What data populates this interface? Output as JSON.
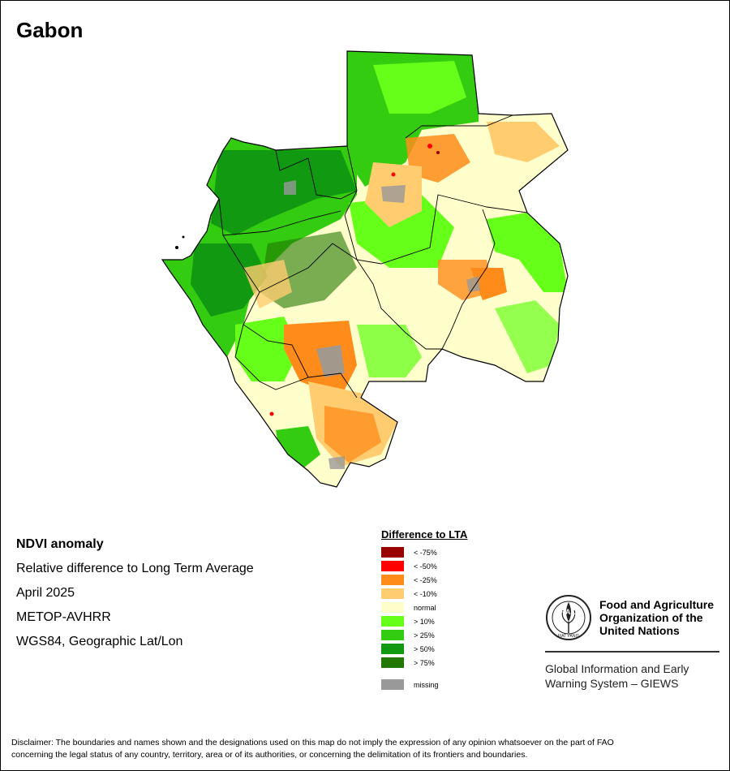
{
  "title": "Gabon",
  "info": {
    "line1": "NDVI anomaly",
    "line2": "Relative difference to Long Term Average",
    "line3": "April 2025",
    "line4": "METOP-AVHRR",
    "line5": "WGS84, Geographic Lat/Lon"
  },
  "legend": {
    "title": "Difference to LTA",
    "items": [
      {
        "label": "< -75%",
        "color": "#990000"
      },
      {
        "label": "< -50%",
        "color": "#ff0000"
      },
      {
        "label": "< -25%",
        "color": "#ff8c1a"
      },
      {
        "label": "< -10%",
        "color": "#ffcc70"
      },
      {
        "label": "normal",
        "color": "#ffffcc"
      },
      {
        "label": "> 10%",
        "color": "#66ff19"
      },
      {
        "label": "> 25%",
        "color": "#33cc11"
      },
      {
        "label": "> 50%",
        "color": "#119911"
      },
      {
        "label": "> 75%",
        "color": "#227700"
      }
    ],
    "missing": {
      "label": "missing",
      "color": "#999999"
    }
  },
  "fao": {
    "name_line1": "Food and Agriculture",
    "name_line2": "Organization of the",
    "name_line3": "United Nations",
    "logo_letters": "F A O",
    "motto": "FIAT PANIS",
    "giews_line1": "Global Information and Early",
    "giews_line2": "Warning System – GIEWS"
  },
  "disclaimer": {
    "line1": "Disclaimer: The boundaries and names shown and the designations used on this map do not imply the expression of any opinion whatsoever on the part of FAO",
    "line2": "concerning the legal status of any country, territory, area or of its authorities, or concerning the delimitation of its frontiers and boundaries."
  }
}
